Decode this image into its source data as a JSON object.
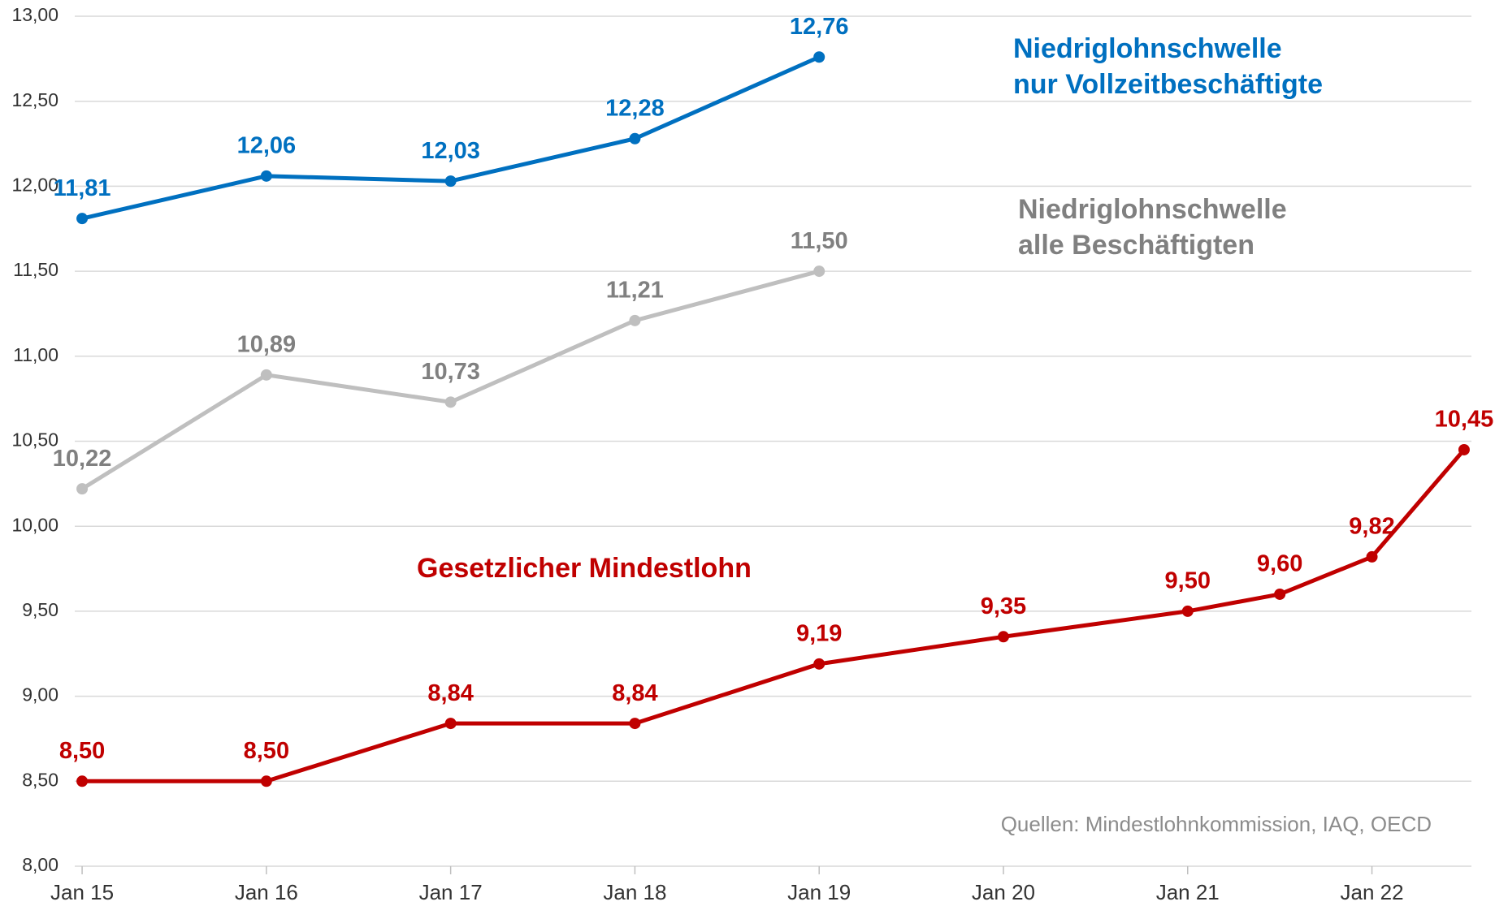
{
  "chart_data": {
    "type": "line",
    "xlim": [
      14.96,
      22.54
    ],
    "xticks": [
      {
        "value": 15,
        "label": "Jan 15"
      },
      {
        "value": 16,
        "label": "Jan 16"
      },
      {
        "value": 17,
        "label": "Jan 17"
      },
      {
        "value": 18,
        "label": "Jan 18"
      },
      {
        "value": 19,
        "label": "Jan 19"
      },
      {
        "value": 20,
        "label": "Jan 20"
      },
      {
        "value": 21,
        "label": "Jan 21"
      },
      {
        "value": 22,
        "label": "Jan 22"
      }
    ],
    "ylim": [
      8,
      13
    ],
    "yticks": [
      {
        "value": 8,
        "label": "8,00"
      },
      {
        "value": 8.5,
        "label": "8,50"
      },
      {
        "value": 9,
        "label": "9,00"
      },
      {
        "value": 9.5,
        "label": "9,50"
      },
      {
        "value": 10,
        "label": "10,00"
      },
      {
        "value": 10.5,
        "label": "10,50"
      },
      {
        "value": 11,
        "label": "11,00"
      },
      {
        "value": 11.5,
        "label": "11,50"
      },
      {
        "value": 12,
        "label": "12,00"
      },
      {
        "value": 12.5,
        "label": "12,50"
      },
      {
        "value": 13,
        "label": "13,00"
      }
    ],
    "grid": true,
    "series": [
      {
        "name": "Niedriglohnschwelle\nnur Vollzeitbeschäftigte",
        "color": "#0070c0",
        "label_color": "#0070c0",
        "x": [
          15,
          16,
          17,
          18,
          19
        ],
        "values": [
          11.81,
          12.06,
          12.03,
          12.28,
          12.76
        ],
        "value_labels": [
          "11,81",
          "12,06",
          "12,03",
          "12,28",
          "12,76"
        ]
      },
      {
        "name": "Niedriglohnschwelle\nalle Beschäftigten",
        "color": "#bfbfbf",
        "label_color": "#808080",
        "x": [
          15,
          16,
          17,
          18,
          19
        ],
        "values": [
          10.22,
          10.89,
          10.73,
          11.21,
          11.5
        ],
        "value_labels": [
          "10,22",
          "10,89",
          "10,73",
          "11,21",
          "11,50"
        ]
      },
      {
        "name": "Gesetzlicher Mindestlohn",
        "color": "#c00000",
        "label_color": "#c00000",
        "x": [
          15,
          16,
          17,
          18,
          19,
          20,
          21,
          21.5,
          22,
          22.5
        ],
        "values": [
          8.5,
          8.5,
          8.84,
          8.84,
          9.19,
          9.35,
          9.5,
          9.6,
          9.82,
          10.45
        ],
        "value_labels": [
          "8,50",
          "8,50",
          "8,84",
          "8,84",
          "9,19",
          "9,35",
          "9,50",
          "9,60",
          "9,82",
          "10,45"
        ]
      }
    ],
    "source": "Quellen: Mindestlohnkommission, IAQ, OECD"
  }
}
